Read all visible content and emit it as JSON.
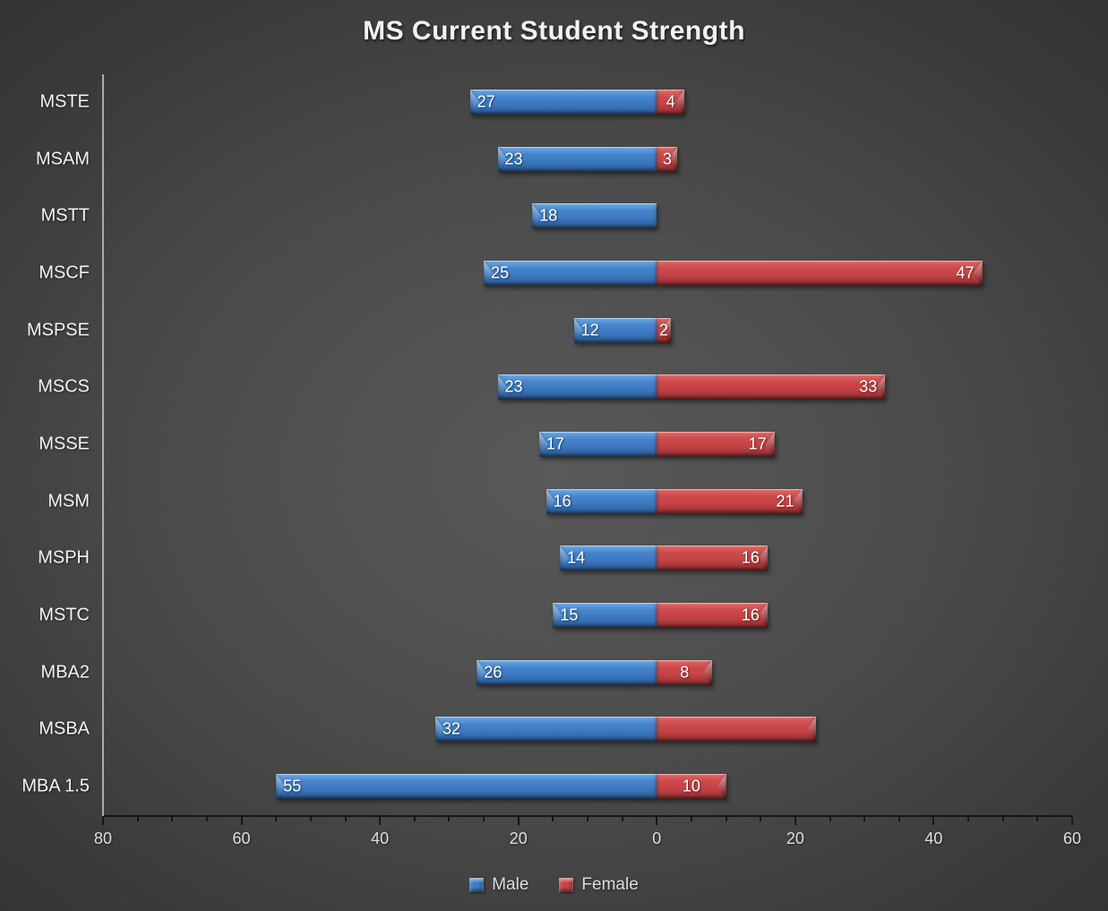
{
  "title": "MS Current Student Strength",
  "colors": {
    "male": "#3E7CC1",
    "female": "#C44245",
    "background_center": "#595959",
    "background_edge": "#282828",
    "zero_line": "#ABABAB",
    "axis_line": "#161616",
    "text": "#F2F2F2",
    "axis_text": "#DEDEDE",
    "value_text": "#FFFFFF"
  },
  "chart_data": {
    "type": "bar",
    "orientation": "horizontal-diverging",
    "title": "MS Current Student Strength",
    "categories": [
      "MSTE",
      "MSAM",
      "MSTT",
      "MSCF",
      "MSPSE",
      "MSCS",
      "MSSE",
      "MSM",
      "MSPH",
      "MSTC",
      "MBA2",
      "MSBA",
      "MBA 1.5"
    ],
    "series": [
      {
        "name": "Male",
        "direction": "left",
        "color": "#3E7CC1",
        "values": [
          27,
          23,
          18,
          25,
          12,
          23,
          17,
          16,
          14,
          15,
          26,
          32,
          55
        ],
        "labels": [
          "27",
          "23",
          "18",
          "25",
          "12",
          "23",
          "17",
          "16",
          "14",
          "15",
          "26",
          "32",
          "55"
        ]
      },
      {
        "name": "Female",
        "direction": "right",
        "color": "#C44245",
        "values": [
          4,
          3,
          0,
          47,
          2,
          33,
          17,
          21,
          16,
          16,
          8,
          23,
          10
        ],
        "labels": [
          "4",
          "3",
          "",
          "47",
          "2",
          "33",
          "17",
          "21",
          "16",
          "16",
          "8",
          "",
          "10"
        ]
      }
    ],
    "x_axis": {
      "left_max": 80,
      "right_max": 60,
      "major_tick_interval": 20,
      "minor_tick_interval": 5,
      "tick_labels": [
        "80",
        "60",
        "40",
        "20",
        "0",
        "20",
        "40",
        "60"
      ]
    },
    "legend": [
      {
        "label": "Male",
        "color": "#3E7CC1"
      },
      {
        "label": "Female",
        "color": "#C44245"
      }
    ],
    "legend_position": "bottom",
    "grid": false
  }
}
